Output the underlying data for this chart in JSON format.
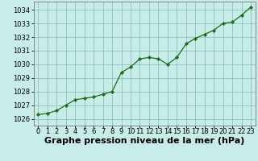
{
  "x": [
    0,
    1,
    2,
    3,
    4,
    5,
    6,
    7,
    8,
    9,
    10,
    11,
    12,
    13,
    14,
    15,
    16,
    17,
    18,
    19,
    20,
    21,
    22,
    23
  ],
  "y": [
    1026.3,
    1026.4,
    1026.6,
    1027.0,
    1027.4,
    1027.5,
    1027.6,
    1027.8,
    1028.0,
    1029.4,
    1029.8,
    1030.4,
    1030.5,
    1030.4,
    1030.0,
    1030.5,
    1031.5,
    1031.9,
    1032.2,
    1032.5,
    1033.0,
    1033.1,
    1033.6,
    1034.2
  ],
  "line_color": "#1a6e1a",
  "marker_color": "#1a6e1a",
  "bg_color": "#c8ece8",
  "grid_color": "#7dbdb5",
  "xlabel": "Graphe pression niveau de la mer (hPa)",
  "ylim": [
    1025.5,
    1034.6
  ],
  "yticks": [
    1026,
    1027,
    1028,
    1029,
    1030,
    1031,
    1032,
    1033,
    1034
  ],
  "xticks": [
    0,
    1,
    2,
    3,
    4,
    5,
    6,
    7,
    8,
    9,
    10,
    11,
    12,
    13,
    14,
    15,
    16,
    17,
    18,
    19,
    20,
    21,
    22,
    23
  ],
  "title_fontsize": 8.0,
  "tick_fontsize": 6.0
}
